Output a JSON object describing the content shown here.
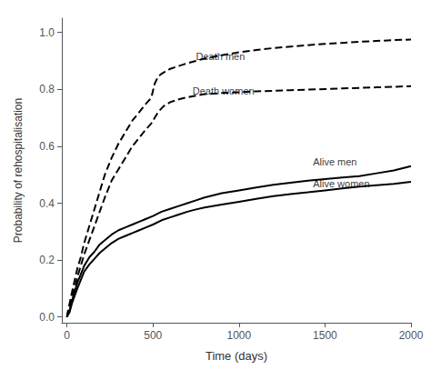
{
  "chart_data": {
    "type": "line",
    "xlabel": "Time (days)",
    "ylabel": "Probability of rehospitalisation",
    "xlim": [
      -30,
      2000
    ],
    "ylim": [
      -0.02,
      1.05
    ],
    "xticks": [
      0,
      500,
      1000,
      1500,
      2000
    ],
    "yticks": [
      {
        "value": 0.0,
        "label": "0.0"
      },
      0.2,
      0.4,
      0.6,
      0.8,
      {
        "value": 1.0,
        "label": "1.0"
      }
    ],
    "grid": false,
    "series": [
      {
        "color": "#000000",
        "line_style": "dashed",
        "x": [
          0,
          3,
          7,
          14,
          21,
          30,
          45,
          60,
          80,
          100,
          130,
          160,
          190,
          220,
          260,
          300,
          340,
          380,
          420,
          460,
          490,
          510,
          530,
          550,
          570,
          600,
          650,
          700,
          750,
          800,
          900,
          1000,
          1100,
          1200,
          1300,
          1400,
          1500,
          1600,
          1700,
          1800,
          1900,
          2000
        ],
        "values": [
          0.0,
          0.01,
          0.025,
          0.045,
          0.065,
          0.09,
          0.13,
          0.17,
          0.21,
          0.26,
          0.32,
          0.38,
          0.44,
          0.5,
          0.56,
          0.61,
          0.65,
          0.69,
          0.72,
          0.75,
          0.77,
          0.82,
          0.845,
          0.855,
          0.862,
          0.872,
          0.882,
          0.892,
          0.9,
          0.908,
          0.92,
          0.93,
          0.938,
          0.945,
          0.95,
          0.955,
          0.96,
          0.963,
          0.967,
          0.97,
          0.973,
          0.975
        ]
      },
      {
        "color": "#000000",
        "line_style": "dashed",
        "x": [
          0,
          3,
          7,
          14,
          21,
          30,
          45,
          60,
          80,
          100,
          130,
          160,
          190,
          220,
          260,
          300,
          340,
          380,
          420,
          460,
          490,
          510,
          530,
          560,
          600,
          650,
          700,
          750,
          800,
          900,
          1000,
          1100,
          1200,
          1300,
          1400,
          1500,
          1600,
          1700,
          1800,
          1900,
          2000
        ],
        "values": [
          0.0,
          0.01,
          0.02,
          0.035,
          0.05,
          0.075,
          0.1,
          0.14,
          0.18,
          0.22,
          0.27,
          0.32,
          0.37,
          0.42,
          0.48,
          0.52,
          0.56,
          0.6,
          0.63,
          0.66,
          0.68,
          0.7,
          0.72,
          0.74,
          0.755,
          0.765,
          0.772,
          0.778,
          0.783,
          0.787,
          0.79,
          0.793,
          0.795,
          0.797,
          0.799,
          0.801,
          0.803,
          0.805,
          0.807,
          0.809,
          0.811
        ]
      },
      {
        "color": "#000000",
        "line_style": "solid",
        "x": [
          0,
          3,
          7,
          14,
          21,
          30,
          45,
          60,
          80,
          100,
          130,
          160,
          190,
          220,
          260,
          300,
          340,
          380,
          420,
          460,
          500,
          550,
          600,
          650,
          700,
          750,
          800,
          900,
          1000,
          1100,
          1200,
          1300,
          1400,
          1500,
          1600,
          1700,
          1800,
          1900,
          2000
        ],
        "values": [
          0.0,
          0.005,
          0.01,
          0.02,
          0.04,
          0.06,
          0.09,
          0.12,
          0.15,
          0.18,
          0.21,
          0.23,
          0.255,
          0.27,
          0.29,
          0.305,
          0.315,
          0.325,
          0.335,
          0.345,
          0.355,
          0.37,
          0.38,
          0.39,
          0.4,
          0.41,
          0.42,
          0.435,
          0.445,
          0.455,
          0.465,
          0.472,
          0.479,
          0.485,
          0.49,
          0.495,
          0.505,
          0.515,
          0.53
        ]
      },
      {
        "color": "#000000",
        "line_style": "solid",
        "x": [
          0,
          3,
          7,
          14,
          21,
          30,
          45,
          60,
          80,
          100,
          130,
          160,
          190,
          220,
          260,
          300,
          340,
          380,
          420,
          460,
          500,
          550,
          600,
          650,
          700,
          750,
          800,
          900,
          1000,
          1100,
          1200,
          1300,
          1400,
          1500,
          1600,
          1700,
          1800,
          1900,
          2000
        ],
        "values": [
          0.0,
          0.005,
          0.01,
          0.015,
          0.03,
          0.05,
          0.075,
          0.1,
          0.13,
          0.16,
          0.185,
          0.205,
          0.225,
          0.24,
          0.26,
          0.275,
          0.285,
          0.295,
          0.305,
          0.315,
          0.325,
          0.34,
          0.35,
          0.36,
          0.37,
          0.378,
          0.385,
          0.395,
          0.405,
          0.415,
          0.425,
          0.432,
          0.438,
          0.445,
          0.452,
          0.458,
          0.463,
          0.468,
          0.475
        ]
      }
    ],
    "annotations": [
      {
        "text": "Death men",
        "x": 750,
        "y": 0.915
      },
      {
        "text": "Death women",
        "x": 730,
        "y": 0.795
      },
      {
        "text": "Alive men",
        "x": 1430,
        "y": 0.545
      },
      {
        "text": "Alive women",
        "x": 1430,
        "y": 0.468
      }
    ]
  }
}
